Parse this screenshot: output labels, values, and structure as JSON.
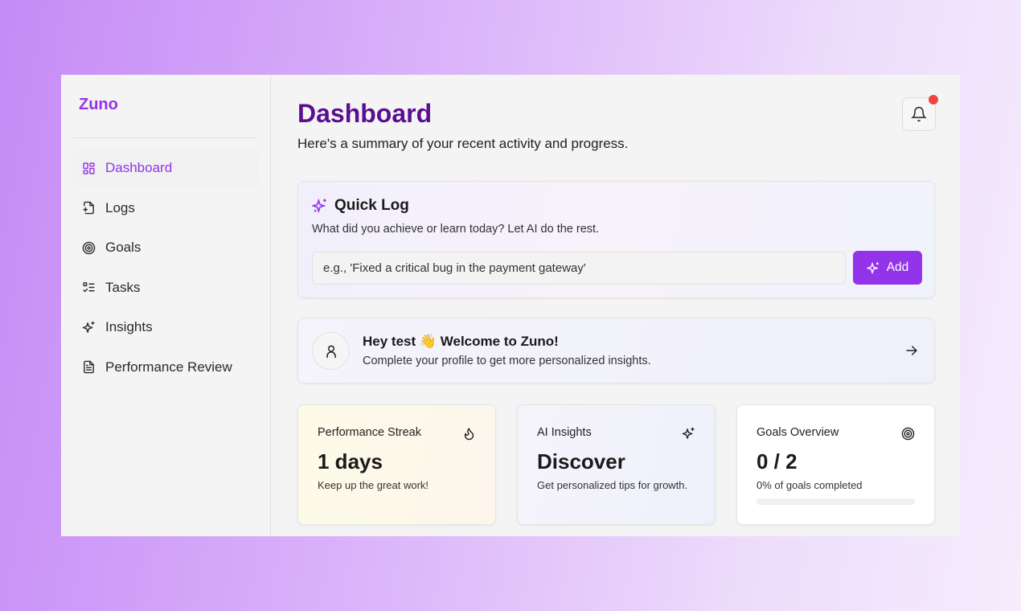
{
  "app": {
    "name": "Zuno"
  },
  "sidebar": {
    "items": [
      {
        "label": "Dashboard",
        "icon": "layout-grid-icon",
        "active": true
      },
      {
        "label": "Logs",
        "icon": "file-plus-icon"
      },
      {
        "label": "Goals",
        "icon": "target-icon"
      },
      {
        "label": "Tasks",
        "icon": "list-checks-icon"
      },
      {
        "label": "Insights",
        "icon": "sparkles-icon"
      },
      {
        "label": "Performance Review",
        "icon": "file-text-icon"
      }
    ]
  },
  "header": {
    "title": "Dashboard",
    "subtitle": "Here's a summary of your recent activity and progress.",
    "notification_dot": true
  },
  "quick_log": {
    "title": "Quick Log",
    "description": "What did you achieve or learn today? Let AI do the rest.",
    "placeholder": "e.g., 'Fixed a critical bug in the payment gateway'",
    "value": "",
    "button": "Add"
  },
  "welcome": {
    "title": "Hey test 👋 Welcome to Zuno!",
    "description": "Complete your profile to get more personalized insights."
  },
  "stats": [
    {
      "title": "Performance Streak",
      "value": "1 days",
      "description": "Keep up the great work!",
      "icon": "flame-icon"
    },
    {
      "title": "AI Insights",
      "value": "Discover",
      "description": "Get personalized tips for growth.",
      "icon": "sparkles-icon"
    },
    {
      "title": "Goals Overview",
      "value": "0 / 2",
      "description": "0% of goals completed",
      "icon": "target-icon",
      "progress_percent": 0
    }
  ],
  "colors": {
    "accent": "#9333ea",
    "title": "#5b0e91",
    "notification": "#ef4444"
  }
}
